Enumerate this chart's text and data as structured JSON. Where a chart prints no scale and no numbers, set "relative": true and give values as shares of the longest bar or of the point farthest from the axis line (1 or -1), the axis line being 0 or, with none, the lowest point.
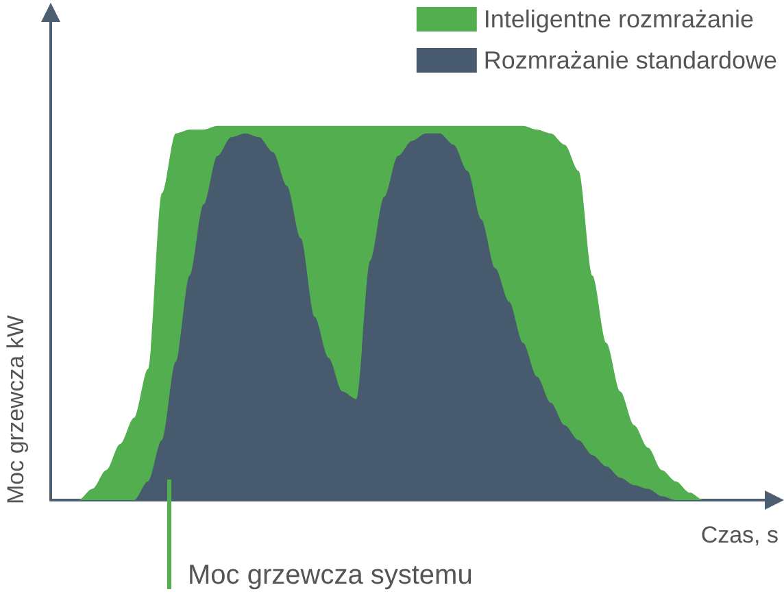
{
  "chart_data": {
    "type": "area",
    "relative": true,
    "xlabel": "Czas, s",
    "ylabel": "Moc grzewcza kW",
    "annotations": [
      "Moc grzewcza systemu"
    ],
    "legend": "top right",
    "grid": false,
    "categories": [
      null,
      null,
      null,
      null,
      null,
      null,
      null,
      null,
      null,
      null,
      null,
      null,
      null,
      null,
      null,
      null,
      null,
      null,
      null,
      null,
      null,
      null,
      null,
      null,
      null,
      null,
      null,
      null,
      null,
      null,
      null,
      null,
      null,
      null,
      null,
      null,
      null,
      null,
      null,
      null,
      null,
      null,
      null,
      null,
      null,
      null,
      null,
      null,
      null,
      null,
      null,
      null,
      null
    ],
    "series": [
      {
        "name": "Inteligentne rozmrażanie",
        "color": "#52ae4f",
        "values": [
          0,
          0,
          0,
          0.03,
          0.08,
          0.15,
          0.22,
          0.35,
          0.82,
          0.98,
          0.99,
          0.99,
          1,
          1,
          1,
          1,
          1,
          1,
          1,
          1,
          1,
          1,
          1,
          1,
          1,
          1,
          1,
          1,
          1,
          1,
          1,
          1,
          1,
          1,
          1,
          0.99,
          0.98,
          0.95,
          0.88,
          0.6,
          0.42,
          0.29,
          0.2,
          0.14,
          0.08,
          0.05,
          0.02,
          0,
          0,
          0,
          0,
          0,
          0
        ]
      },
      {
        "name": "Rozmrażanie standardowe",
        "color": "#475a6e",
        "values": [
          0,
          0,
          0,
          0,
          0,
          0,
          0,
          0.05,
          0.16,
          0.37,
          0.6,
          0.79,
          0.92,
          0.97,
          0.98,
          0.97,
          0.93,
          0.84,
          0.7,
          0.49,
          0.38,
          0.29,
          0.27,
          0.64,
          0.81,
          0.92,
          0.96,
          0.98,
          0.98,
          0.95,
          0.88,
          0.75,
          0.62,
          0.53,
          0.42,
          0.33,
          0.26,
          0.2,
          0.16,
          0.12,
          0.09,
          0.06,
          0.04,
          0.03,
          0.01,
          0,
          0,
          0,
          0,
          0,
          0,
          0,
          0
        ]
      }
    ]
  }
}
